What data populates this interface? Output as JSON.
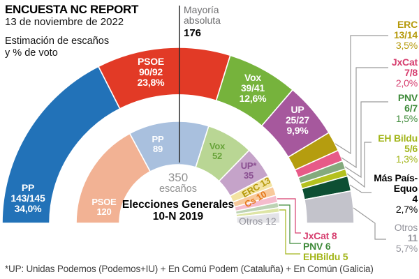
{
  "header": {
    "title": "ENCUESTA NC REPORT",
    "date": "13 de noviembre de 2022",
    "subtitle_line1": "Estimación de escaños",
    "subtitle_line2": "y % de voto"
  },
  "majority": {
    "line1": "Mayoría",
    "line2": "absoluta",
    "seats": "176"
  },
  "center": {
    "total_seats": "350",
    "total_unit": "escaños",
    "election_line1": "Elecciones Generales",
    "election_line2": "10-N 2019"
  },
  "footnote": "*UP: Unidas Podemos (Podemos+IU) + En Comú Podem (Cataluña) + En Común (Galicia)",
  "styles": {
    "connector_gray": "#9b9b9b",
    "majority_line_color": "#2b2b2b",
    "center_gray": "#909090"
  },
  "chart_data": {
    "type": "pie",
    "variant": "double-hemicycle-donut",
    "title": "ENCUESTA NC REPORT 13 de noviembre de 2022 — Estimación de escaños y % de voto",
    "total_seats": 350,
    "majority_seats": 176,
    "outer_series": {
      "name": "Encuesta NC Report 13-11-2022 (estimación)",
      "segments": [
        {
          "party": "PP",
          "seats": "143/145",
          "pct": "34,0%",
          "value": 34.0,
          "color": "#2272b8",
          "text_color": "#ffffff"
        },
        {
          "party": "PSOE",
          "seats": "90/92",
          "pct": "23,8%",
          "value": 23.8,
          "color": "#e23a26",
          "text_color": "#ffffff"
        },
        {
          "party": "Vox",
          "seats": "39/41",
          "pct": "12,6%",
          "value": 12.6,
          "color": "#76b33c",
          "text_color": "#ffffff"
        },
        {
          "party": "UP",
          "seats": "25/27",
          "pct": "9,9%",
          "value": 9.9,
          "color": "#a6589d",
          "text_color": "#ffffff"
        },
        {
          "party": "ERC",
          "seats": "13/14",
          "pct": "3,5%",
          "value": 3.5,
          "color": "#b59d0f",
          "text_color": "#b5990b"
        },
        {
          "party": "JxCat",
          "seats": "7/8",
          "pct": "2,0%",
          "value": 2.0,
          "color": "#e75a88",
          "text_color": "#d63d6e"
        },
        {
          "party": "PNV",
          "seats": "6/7",
          "pct": "1,5%",
          "value": 1.5,
          "color": "#84aa7d",
          "text_color": "#3e8a39"
        },
        {
          "party": "EH Bildu",
          "seats": "5/6",
          "pct": "1,3%",
          "value": 1.3,
          "color": "#b4c11f",
          "text_color": "#a2b519"
        },
        {
          "party": "Más País-Equo",
          "name_line1": "Más País-",
          "name_line2": "Equo",
          "seats": "4",
          "pct": "2,7%",
          "value": 2.7,
          "color": "#0d4f33",
          "text_color": "#000000"
        },
        {
          "party": "Otros",
          "seats": "11",
          "pct": "5,7%",
          "value": 5.7,
          "color": "#c3c3cb",
          "text_color": "#96969e"
        }
      ]
    },
    "inner_series": {
      "name": "Elecciones Generales 10-N 2019",
      "segments": [
        {
          "party": "PSOE",
          "seats": "120",
          "value": 120,
          "color": "#f2b294",
          "text_color": "#ffffff"
        },
        {
          "party": "PP",
          "seats": "89",
          "value": 89,
          "color": "#a9c0de",
          "text_color": "#ffffff"
        },
        {
          "party": "Vox",
          "seats": "52",
          "value": 52,
          "color": "#b9d694",
          "text_color": "#68a33a"
        },
        {
          "party": "UP*",
          "seats": "35",
          "value": 35,
          "color": "#c5a3c9",
          "text_color": "#8a4f91"
        },
        {
          "party": "ERC",
          "seats": "13",
          "value": 13,
          "color": "#f3e3a2",
          "text_color": "#b5990b"
        },
        {
          "party": "Cs",
          "seats": "10",
          "value": 10,
          "color": "#f8c99b",
          "text_color": "#e5791d"
        },
        {
          "party": "JxCat",
          "seats": "8",
          "value": 8,
          "color": "#f5bccd",
          "text_color": "#d63d6e"
        },
        {
          "party": "PNV",
          "seats": "6",
          "value": 6,
          "color": "#bdd3b4",
          "text_color": "#3e8a39"
        },
        {
          "party": "EHBildu",
          "seats": "5",
          "value": 5,
          "color": "#dee5a5",
          "text_color": "#a2b519"
        },
        {
          "party": "Otros",
          "seats": "12",
          "value": 12,
          "color": "#e3e3e7",
          "text_color": "#96969e"
        }
      ]
    }
  }
}
